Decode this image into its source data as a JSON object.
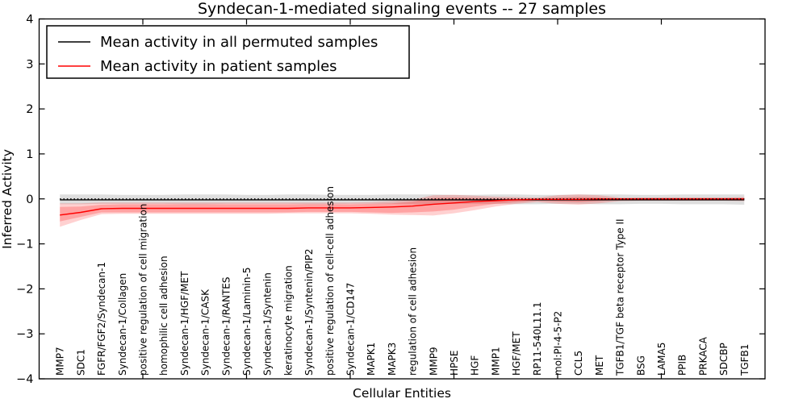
{
  "title": "Syndecan-1-mediated signaling events -- 27 samples",
  "legend": {
    "entries": [
      {
        "label": "Mean activity in all permuted samples",
        "color": "#000000"
      },
      {
        "label": "Mean activity in patient samples",
        "color": "#ff0000"
      }
    ]
  },
  "chart_data": {
    "type": "line",
    "title": "Syndecan-1-mediated signaling events -- 27 samples",
    "xlabel": "Cellular Entities",
    "ylabel": "Inferred Activity",
    "ylim": [
      -4,
      4
    ],
    "yticks": [
      -4,
      -3,
      -2,
      -1,
      0,
      1,
      2,
      3,
      4
    ],
    "x_major_tick_step": 5,
    "grid": false,
    "legend_position": "upper left",
    "zero_line": {
      "style": "dotted",
      "color": "#000000",
      "y": 0
    },
    "categories": [
      "MMP7",
      "SDC1",
      "FGFR/FGF2/Syndecan-1",
      "Syndecan-1/Collagen",
      "positive regulation of cell migration",
      "homophilic cell adhesion",
      "Syndecan-1/HGF/MET",
      "Syndecan-1/CASK",
      "Syndecan-1/RANTES",
      "Syndecan-1/Laminin-5",
      "Syndecan-1/Syntenin",
      "keratinocyte migration",
      "Syndecan-1/Syntenin/PIP2",
      "positive regulation of cell-cell adhesion",
      "Syndecan-1/CD147",
      "MAPK1",
      "MAPK3",
      "regulation of cell adhesion",
      "MMP9",
      "HPSE",
      "HGF",
      "MMP1",
      "HGF/MET",
      "RP11-540L11.1",
      "mol:PI-4-5-P2",
      "CCL5",
      "MET",
      "TGFB1/TGF beta receptor Type II",
      "BSG",
      "LAMA5",
      "PPIB",
      "PRKACA",
      "SDCBP",
      "TGFB1"
    ],
    "series": [
      {
        "name": "Mean activity in all permuted samples",
        "color": "#000000",
        "values": [
          -0.02,
          -0.02,
          -0.02,
          -0.02,
          -0.02,
          -0.02,
          -0.02,
          -0.02,
          -0.02,
          -0.02,
          -0.02,
          -0.02,
          -0.02,
          -0.02,
          -0.02,
          -0.02,
          -0.02,
          -0.02,
          -0.02,
          -0.02,
          -0.02,
          -0.02,
          -0.02,
          -0.02,
          -0.02,
          -0.02,
          -0.02,
          -0.02,
          -0.02,
          -0.02,
          -0.02,
          -0.02,
          -0.02,
          -0.02
        ]
      },
      {
        "name": "Mean activity in patient samples",
        "color": "#ff0000",
        "values": [
          -0.36,
          -0.3,
          -0.22,
          -0.21,
          -0.21,
          -0.21,
          -0.21,
          -0.21,
          -0.21,
          -0.21,
          -0.21,
          -0.21,
          -0.2,
          -0.2,
          -0.2,
          -0.19,
          -0.18,
          -0.16,
          -0.12,
          -0.09,
          -0.06,
          -0.04,
          -0.02,
          -0.01,
          -0.01,
          -0.01,
          0.0,
          0.0,
          0.0,
          0.0,
          0.0,
          0.0,
          0.0,
          0.0
        ]
      }
    ],
    "bands": [
      {
        "name": "permuted samples spread",
        "color": "rgba(0,0,0,0.13)",
        "upper": [
          0.1,
          0.1,
          0.1,
          0.09,
          0.09,
          0.09,
          0.1,
          0.1,
          0.1,
          0.09,
          0.09,
          0.1,
          0.1,
          0.09,
          0.09,
          0.09,
          0.1,
          0.1,
          0.1,
          0.09,
          0.09,
          0.1,
          0.1,
          0.09,
          0.09,
          0.1,
          0.1,
          0.1,
          0.09,
          0.09,
          0.1,
          0.1,
          0.1,
          0.1
        ],
        "lower": [
          -0.12,
          -0.12,
          -0.11,
          -0.11,
          -0.11,
          -0.11,
          -0.12,
          -0.12,
          -0.11,
          -0.11,
          -0.11,
          -0.11,
          -0.12,
          -0.12,
          -0.11,
          -0.11,
          -0.11,
          -0.12,
          -0.12,
          -0.11,
          -0.11,
          -0.11,
          -0.12,
          -0.12,
          -0.11,
          -0.11,
          -0.12,
          -0.12,
          -0.11,
          -0.11,
          -0.12,
          -0.12,
          -0.12,
          -0.13
        ]
      },
      {
        "name": "patient samples outer spread",
        "color": "rgba(255,0,0,0.18)",
        "upper": [
          -0.1,
          -0.1,
          -0.08,
          -0.08,
          -0.08,
          -0.08,
          -0.08,
          -0.08,
          -0.08,
          -0.08,
          -0.08,
          -0.08,
          -0.08,
          -0.08,
          -0.08,
          -0.07,
          -0.05,
          -0.02,
          0.08,
          0.09,
          0.07,
          0.05,
          0.04,
          0.03,
          0.08,
          0.1,
          0.08,
          0.03,
          0.03,
          0.03,
          0.03,
          0.03,
          0.03,
          0.04
        ],
        "lower": [
          -0.62,
          -0.47,
          -0.34,
          -0.33,
          -0.33,
          -0.33,
          -0.33,
          -0.33,
          -0.33,
          -0.33,
          -0.33,
          -0.32,
          -0.32,
          -0.32,
          -0.32,
          -0.33,
          -0.35,
          -0.36,
          -0.37,
          -0.32,
          -0.25,
          -0.17,
          -0.11,
          -0.07,
          -0.11,
          -0.13,
          -0.1,
          -0.05,
          -0.04,
          -0.04,
          -0.04,
          -0.04,
          -0.04,
          -0.05
        ]
      },
      {
        "name": "patient samples inner spread",
        "color": "rgba(255,0,0,0.22)",
        "upper": [
          -0.18,
          -0.17,
          -0.13,
          -0.12,
          -0.12,
          -0.12,
          -0.12,
          -0.12,
          -0.12,
          -0.12,
          -0.12,
          -0.12,
          -0.12,
          -0.12,
          -0.12,
          -0.11,
          -0.1,
          -0.06,
          0.02,
          0.03,
          0.02,
          0.01,
          0.01,
          0.01,
          0.03,
          0.04,
          0.03,
          0.01,
          0.02,
          0.02,
          0.02,
          0.02,
          0.02,
          0.02
        ],
        "lower": [
          -0.5,
          -0.4,
          -0.3,
          -0.3,
          -0.3,
          -0.3,
          -0.3,
          -0.3,
          -0.3,
          -0.3,
          -0.3,
          -0.3,
          -0.29,
          -0.29,
          -0.29,
          -0.3,
          -0.31,
          -0.3,
          -0.28,
          -0.24,
          -0.17,
          -0.11,
          -0.07,
          -0.04,
          -0.06,
          -0.07,
          -0.05,
          -0.02,
          -0.02,
          -0.02,
          -0.02,
          -0.02,
          -0.02,
          -0.03
        ]
      }
    ]
  }
}
